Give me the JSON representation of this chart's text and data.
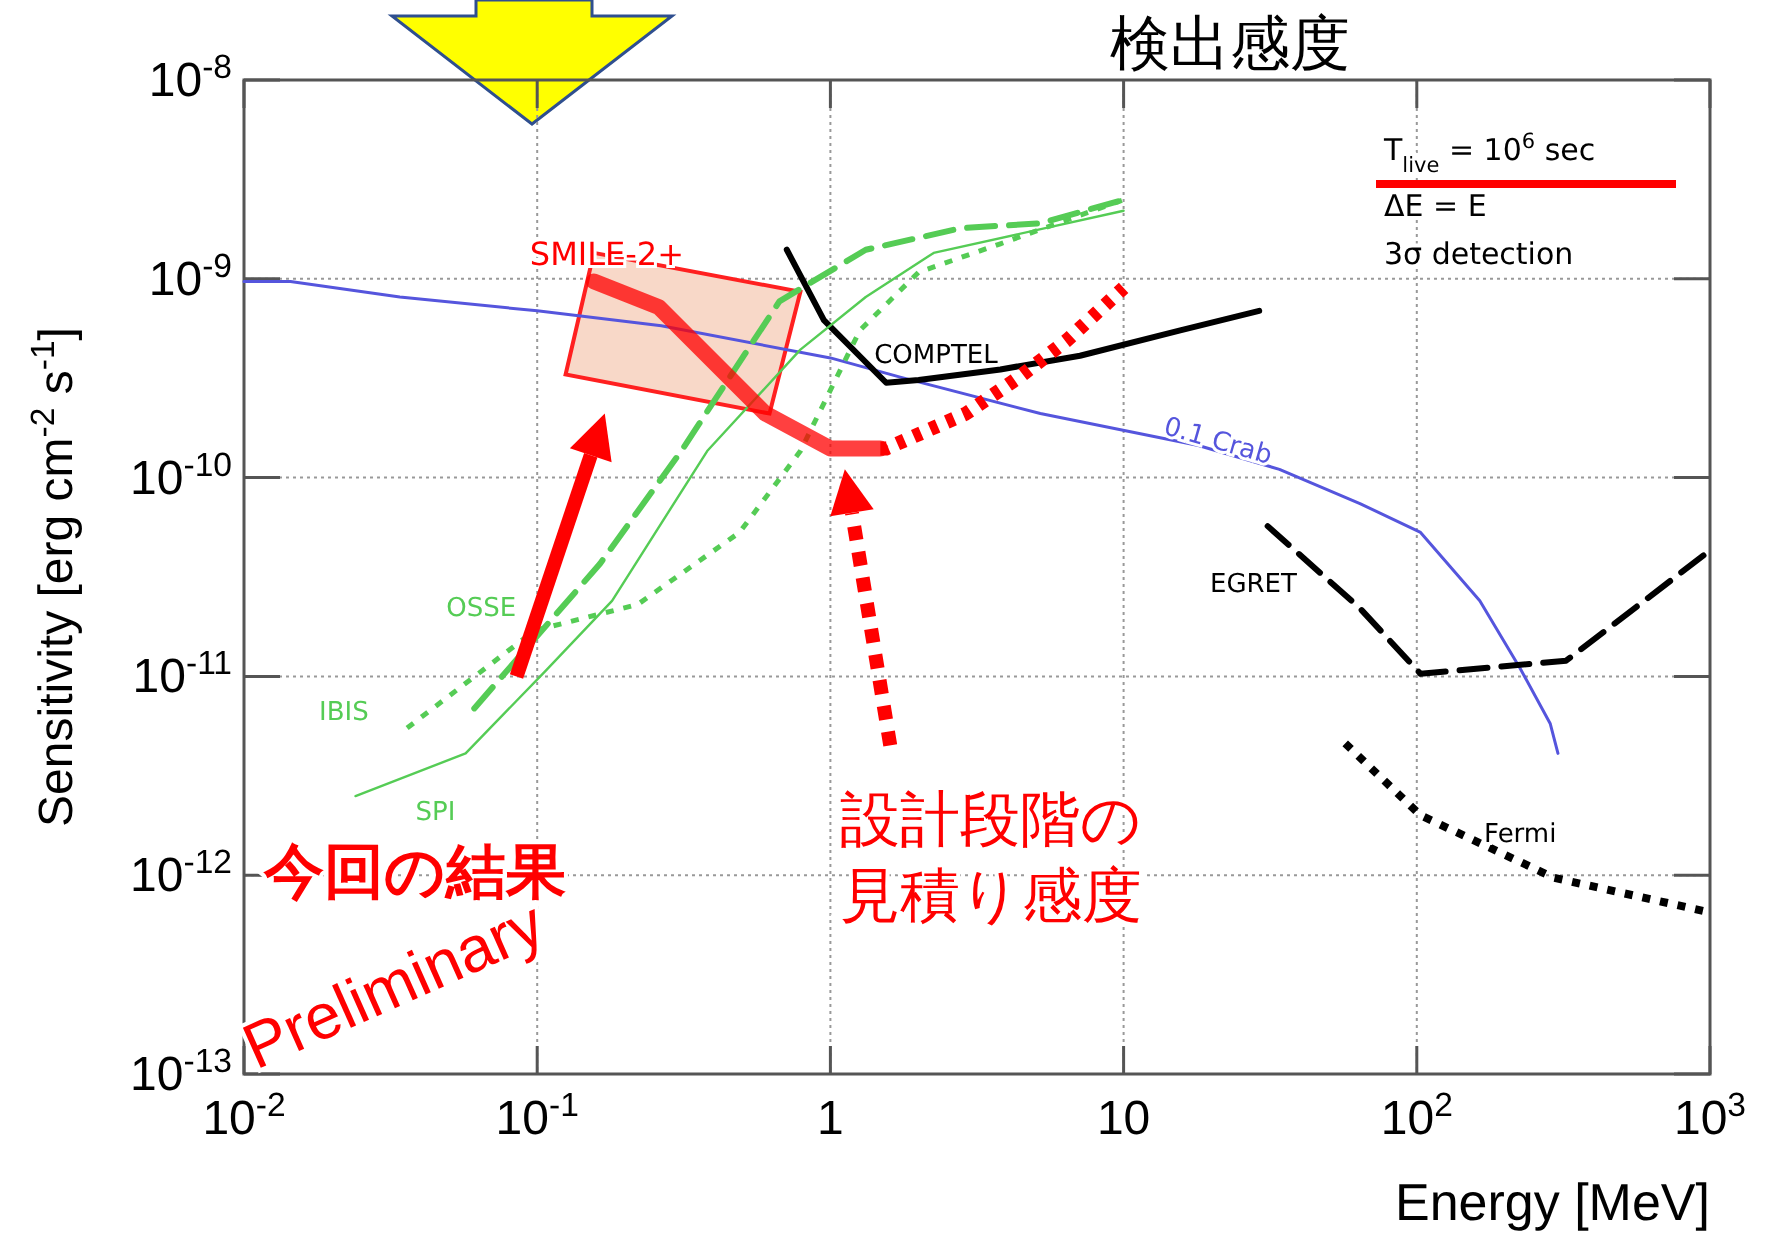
{
  "chart_data": {
    "type": "line",
    "title": "検出感度",
    "xlabel": "Energy [MeV]",
    "ylabel": "Sensitivity [erg cm$^{-2}$ s$^{-1}$]",
    "log": "xy",
    "grid": true,
    "legend": false,
    "xlim": [
      0.01,
      1000
    ],
    "ylim": [
      1e-13,
      1e-08
    ],
    "xticks": [
      {
        "value": 0.01,
        "label": "10$^{-2}$"
      },
      {
        "value": 0.1,
        "label": "10$^{-1}$"
      },
      1,
      10,
      {
        "value": 100,
        "label": "10$^{2}$"
      },
      {
        "value": 1000,
        "label": "10$^{3}$"
      }
    ],
    "yticks": [
      {
        "value": 1e-13,
        "label": "10$^{-13}$"
      },
      {
        "value": 1e-12,
        "label": "10$^{-12}$"
      },
      {
        "value": 1e-11,
        "label": "10$^{-11}$"
      },
      {
        "value": 1e-10,
        "label": "10$^{-10}$"
      },
      {
        "value": 1e-09,
        "label": "10$^{-9}$"
      },
      {
        "value": 1e-08,
        "label": "10$^{-8}$"
      }
    ],
    "series": [
      {
        "name": "0.1 Crab",
        "color": "#5555dd",
        "line_style": "solid",
        "x": [
          0.01,
          0.0144,
          0.034,
          0.1,
          0.265,
          1.0,
          1.73,
          5.2,
          18,
          34,
          64,
          103,
          164,
          225,
          285,
          303
        ],
        "values": [
          9.7e-10,
          9.7e-10,
          8.1e-10,
          6.9e-10,
          5.8e-10,
          4e-10,
          3.2e-10,
          2.1e-10,
          1.45e-10,
          1.1e-10,
          7.4e-11,
          5.3e-11,
          2.4e-11,
          1.1e-11,
          5.8e-12,
          4.1e-12
        ]
      },
      {
        "name": "COMPTEL",
        "color": "#000000",
        "line_style": "solid",
        "x": [
          0.71,
          0.95,
          1.55,
          2.0,
          3.8,
          7.1,
          15.6,
          29
        ],
        "values": [
          1.4e-09,
          6.2e-10,
          3e-10,
          3.1e-10,
          3.5e-10,
          4.1e-10,
          5.5e-10,
          6.9e-10
        ]
      },
      {
        "name": "EGRET",
        "color": "#000000",
        "line_style": "dashed",
        "x": [
          31,
          64,
          103,
          323,
          1000
        ],
        "values": [
          5.7e-11,
          2.2e-11,
          1.03e-11,
          1.2e-11,
          4.3e-11
        ]
      },
      {
        "name": "Fermi",
        "color": "#000000",
        "line_style": "dotted",
        "x": [
          57,
          103,
          294,
          1000
        ],
        "values": [
          4.6e-12,
          2e-12,
          9.7e-13,
          6.5e-13
        ]
      },
      {
        "name": "OSSE",
        "color": "#55cc55",
        "line_style": "dashed",
        "x": [
          0.061,
          0.164,
          0.31,
          0.67,
          1.32,
          2.8,
          5.2,
          10
        ],
        "values": [
          6.9e-12,
          3.7e-11,
          1.36e-10,
          7.7e-10,
          1.4e-09,
          1.8e-09,
          1.9e-09,
          2.5e-09
        ]
      },
      {
        "name": "IBIS",
        "color": "#55cc55",
        "line_style": "dotted",
        "x": [
          0.036,
          0.098,
          0.22,
          0.49,
          0.79,
          1.26,
          2.0,
          3.8,
          10
        ],
        "values": [
          5.5e-12,
          1.7e-11,
          2.3e-11,
          5.3e-11,
          1.36e-10,
          5.5e-10,
          1.08e-09,
          1.5e-09,
          2.5e-09
        ]
      },
      {
        "name": "SPI",
        "color": "#55cc55",
        "line_style": "solid",
        "x": [
          0.024,
          0.057,
          0.107,
          0.18,
          0.38,
          0.79,
          1.32,
          2.25,
          10
        ],
        "values": [
          2.5e-12,
          4.1e-12,
          1.07e-11,
          2.4e-11,
          1.36e-10,
          4.4e-10,
          8.1e-10,
          1.35e-09,
          2.2e-09
        ]
      },
      {
        "name": "SMILE-2+",
        "color": "#ff0000",
        "line_style": "solid",
        "x": [
          0.156,
          0.26,
          0.6,
          1.0,
          1.48
        ],
        "values": [
          9.7e-10,
          7.2e-10,
          2.1e-10,
          1.4e-10,
          1.4e-10
        ]
      },
      {
        "color": "#ff0000",
        "line_style": "dotted",
        "x": [
          1.48,
          1.55,
          2.9,
          4.4,
          6.4,
          10
        ],
        "values": [
          1.4e-10,
          1.4e-10,
          2.1e-10,
          3.2e-10,
          4.9e-10,
          9e-10
        ]
      }
    ],
    "annotations": [
      "T$_{live}$ = 10$^{6}$ sec",
      "ΔE = E",
      "3σ detection",
      "今回の結果",
      "設計段階の",
      "見積り感度",
      "Preliminary"
    ]
  }
}
